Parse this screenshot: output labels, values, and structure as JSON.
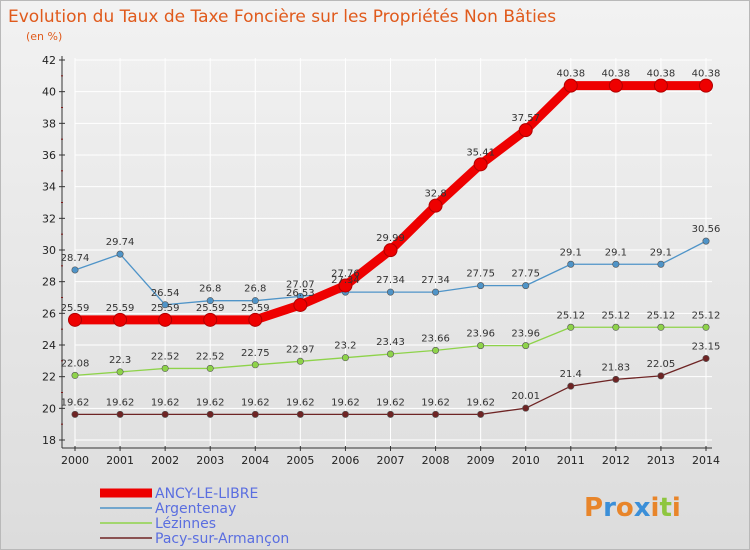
{
  "chart_data": {
    "type": "line",
    "title": "Evolution du Taux de Taxe Foncière sur les Propriétés Non Bâties",
    "subtitle": "(en %)",
    "x": [
      "2000",
      "2001",
      "2002",
      "2003",
      "2004",
      "2005",
      "2006",
      "2007",
      "2008",
      "2009",
      "2010",
      "2011",
      "2012",
      "2013",
      "2014"
    ],
    "yticks": [
      "18",
      "20",
      "22",
      "24",
      "26",
      "28",
      "30",
      "32",
      "34",
      "36",
      "38",
      "40",
      "42"
    ],
    "ylim": [
      18,
      42
    ],
    "grid": true,
    "legend_position": "bottom-left",
    "series": [
      {
        "name": "ANCY-LE-LIBRE",
        "color": "#ee0000",
        "values": [
          25.59,
          25.59,
          25.59,
          25.59,
          25.59,
          26.53,
          27.76,
          29.99,
          32.8,
          35.41,
          37.57,
          40.38,
          40.38,
          40.38,
          40.38
        ],
        "labels": [
          "25.59",
          "25.59",
          "25.59",
          "25.59",
          "25.59",
          "26.53",
          "27.76",
          "29.99",
          "32.8",
          "35.41",
          "37.57",
          "40.38",
          "40.38",
          "40.38",
          "40.38"
        ]
      },
      {
        "name": "Argentenay",
        "color": "#4f94c8",
        "values": [
          28.74,
          29.74,
          26.54,
          26.8,
          26.8,
          27.07,
          27.34,
          27.34,
          27.34,
          27.75,
          27.75,
          29.1,
          29.1,
          29.1,
          30.56
        ],
        "labels": [
          "28.74",
          "29.74",
          "26.54",
          "26.8",
          "26.8",
          "27.07",
          "27.34",
          "27.34",
          "27.34",
          "27.75",
          "27.75",
          "29.1",
          "29.1",
          "29.1",
          "30.56"
        ]
      },
      {
        "name": "Lézinnes",
        "color": "#8ed34a",
        "values": [
          22.08,
          22.3,
          22.52,
          22.52,
          22.75,
          22.97,
          23.2,
          23.43,
          23.66,
          23.96,
          23.96,
          25.12,
          25.12,
          25.12,
          25.12
        ],
        "labels": [
          "22.08",
          "22.3",
          "22.52",
          "22.52",
          "22.75",
          "22.97",
          "23.2",
          "23.43",
          "23.66",
          "23.96",
          "23.96",
          "25.12",
          "25.12",
          "25.12",
          "25.12"
        ]
      },
      {
        "name": "Pacy-sur-Armançon",
        "color": "#6e2424",
        "values": [
          19.62,
          19.62,
          19.62,
          19.62,
          19.62,
          19.62,
          19.62,
          19.62,
          19.62,
          19.62,
          20.01,
          21.4,
          21.83,
          22.05,
          23.15
        ],
        "labels": [
          "19.62",
          "19.62",
          "19.62",
          "19.62",
          "19.62",
          "19.62",
          "19.62",
          "19.62",
          "19.62",
          "19.62",
          "20.01",
          "21.4",
          "21.83",
          "22.05",
          "23.15"
        ]
      }
    ]
  },
  "logo": {
    "text": "Proxiti",
    "colors": [
      "#e8852a",
      "#3b8fd8",
      "#e8852a",
      "#3b8fd8",
      "#e8852a",
      "#8ec63f",
      "#e8852a"
    ]
  }
}
